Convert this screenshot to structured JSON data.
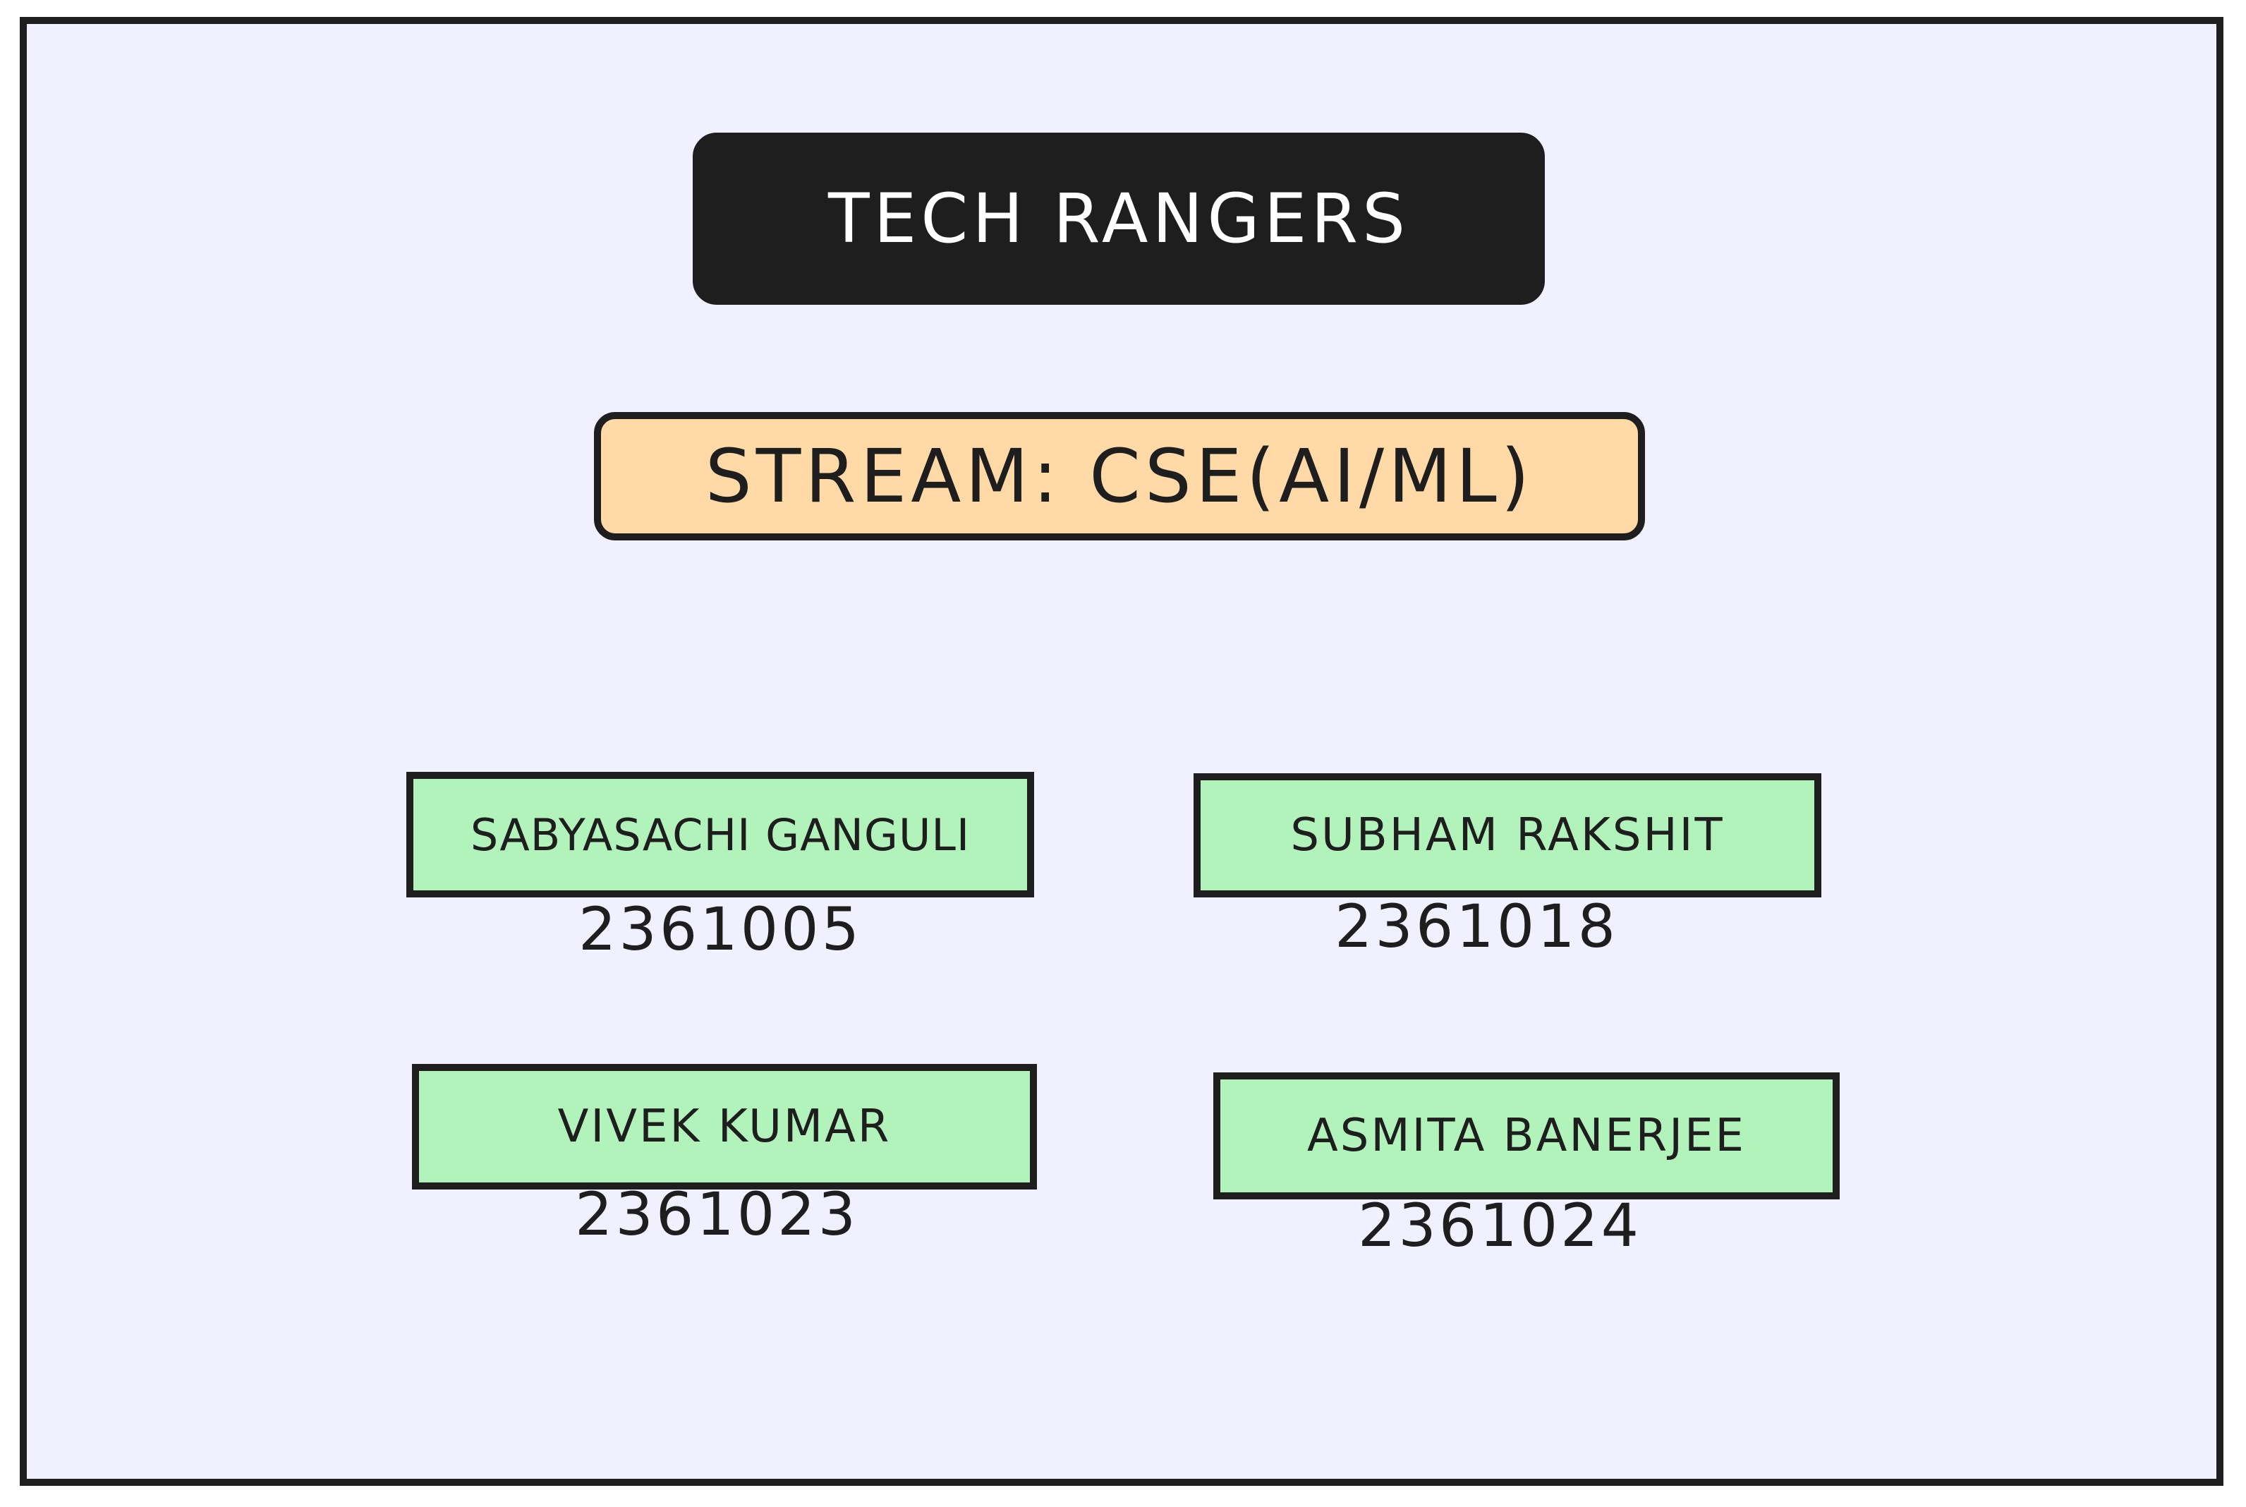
{
  "title": "TECH RANGERS",
  "stream": "STREAM: CSE(AI/ML)",
  "members": [
    {
      "name": "SABYASACHI GANGULI",
      "roll": "2361005"
    },
    {
      "name": "SUBHAM RAKSHIT",
      "roll": "2361018"
    },
    {
      "name": "VIVEK KUMAR",
      "roll": "2361023"
    },
    {
      "name": "ASMITA BANERJEE",
      "roll": "2361024"
    }
  ],
  "colors": {
    "background": "#f1f0fe",
    "title_fill": "#1e1e1e",
    "stream_fill": "#ffd9a6",
    "member_fill": "#b2f2bb",
    "stroke": "#1e1e1e"
  }
}
